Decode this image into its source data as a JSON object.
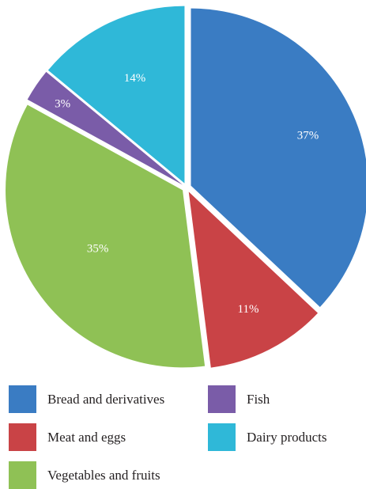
{
  "chart_data": {
    "type": "pie",
    "slices": [
      {
        "label": "Bread and derivatives",
        "value": 37,
        "value_label": "37%",
        "color": "#3a7cc3"
      },
      {
        "label": "Meat and eggs",
        "value": 11,
        "value_label": "11%",
        "color": "#c94346"
      },
      {
        "label": "Vegetables and fruits",
        "value": 35,
        "value_label": "35%",
        "color": "#8fc155"
      },
      {
        "label": "Fish",
        "value": 3,
        "value_label": "3%",
        "color": "#7a5ca8"
      },
      {
        "label": "Dairy products",
        "value": 14,
        "value_label": "14%",
        "color": "#2fb8d8"
      }
    ],
    "legend_position": "bottom",
    "slice_order": "clockwise from top"
  },
  "legend": {
    "items": [
      {
        "label": "Bread and derivatives",
        "color": "#3a7cc3"
      },
      {
        "label": "Meat and eggs",
        "color": "#c94346"
      },
      {
        "label": "Vegetables and fruits",
        "color": "#8fc155"
      },
      {
        "label": "Fish",
        "color": "#7a5ca8"
      },
      {
        "label": "Dairy products",
        "color": "#2fb8d8"
      }
    ]
  }
}
